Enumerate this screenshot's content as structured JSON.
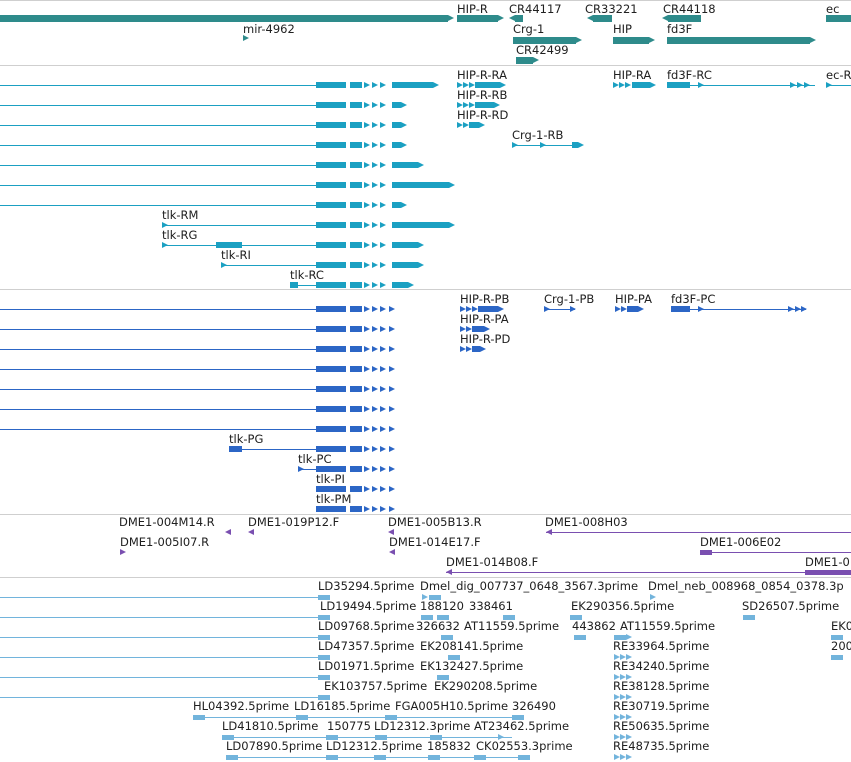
{
  "colors": {
    "gene": "#2e8b8b",
    "mrna": "#1ba0c2",
    "cds": "#2c66c6",
    "clone_end": "#7a4fb0",
    "est": "#72b4dc",
    "separator": "#cfcfcf",
    "label": "#202020"
  },
  "tracks": {
    "genes": {
      "labels": [
        "HIP-R",
        "CR44117",
        "CR33221",
        "CR44118",
        "ec",
        "mir-4962",
        "Crg-1",
        "HIP",
        "fd3F",
        "CR42499"
      ]
    },
    "transcripts": {
      "labels": [
        "HIP-R-RA",
        "HIP-RA",
        "fd3F-RC",
        "ec-R",
        "HIP-R-RB",
        "HIP-R-RD",
        "Crg-1-RB",
        "tlk-RM",
        "tlk-RG",
        "tlk-RI",
        "tlk-RC"
      ]
    },
    "cds": {
      "labels": [
        "HIP-R-PB",
        "Crg-1-PB",
        "HIP-PA",
        "fd3F-PC",
        "HIP-R-PA",
        "HIP-R-PD",
        "tlk-PG",
        "tlk-PC",
        "tlk-PI",
        "tlk-PM"
      ]
    },
    "clone_ends": {
      "labels": [
        "DME1-004M14.R",
        "DME1-019P12.F",
        "DME1-005B13.R",
        "DME1-008H03",
        "DME1-005I07.R",
        "DME1-014E17.F",
        "DME1-006E02",
        "DME1-014B08.F",
        "DME1-0"
      ]
    },
    "ests": {
      "labels": [
        "LD35294.5prime",
        "Dmel_dig_007737_0648_3567.3prime",
        "Dmel_neb_008968_0854_0378.3p",
        "LD19494.5prime",
        "188120",
        "338461",
        "EK290356.5prime",
        "SD26507.5prime",
        "LD09768.5prime",
        "326632",
        "AT11559.5prime",
        "443862",
        "AT11559.5prime",
        "EK0",
        "LD47357.5prime",
        "EK208141.5prime",
        "RE33964.5prime",
        "200",
        "LD01971.5prime",
        "EK132427.5prime",
        "RE34240.5prime",
        "EK103757.5prime",
        "EK290208.5prime",
        "RE38128.5prime",
        "HL04392.5prime",
        "LD16185.5prime",
        "FGA005H10.5prime",
        "326490",
        "RE30719.5prime",
        "LD41810.5prime",
        "150775",
        "LD12312.3prime",
        "AT23462.5prime",
        "RE50635.5prime",
        "LD07890.5prime",
        "LD12312.5prime",
        "185832",
        "CK02553.3prime",
        "RE48735.5prime"
      ]
    }
  }
}
